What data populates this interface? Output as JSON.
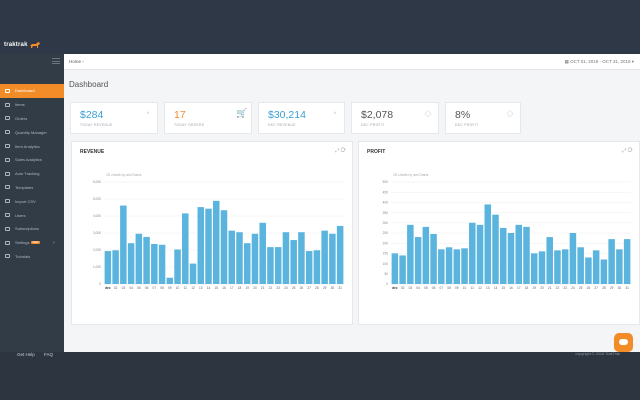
{
  "brand": {
    "name": "traktrak"
  },
  "header": {
    "breadcrumb": "Home",
    "date_range": "OCT 01, 2018 - OCT 31, 2018"
  },
  "page": {
    "title": "Dashboard"
  },
  "sidebar": {
    "items": [
      {
        "label": "Dashboard",
        "icon": "dashboard-icon",
        "active": true
      },
      {
        "label": "Items",
        "icon": "items-icon"
      },
      {
        "label": "Orders",
        "icon": "orders-icon"
      },
      {
        "label": "Quantity Manager",
        "icon": "quantity-icon"
      },
      {
        "label": "Item Analytics",
        "icon": "analytics-icon"
      },
      {
        "label": "Sales Analytics",
        "icon": "sales-icon"
      },
      {
        "label": "Auto Tracking",
        "icon": "tracking-icon"
      },
      {
        "label": "Templates",
        "icon": "templates-icon"
      },
      {
        "label": "Import CSV",
        "icon": "import-icon"
      },
      {
        "label": "Users",
        "icon": "users-icon"
      },
      {
        "label": "Subscriptions",
        "icon": "subscriptions-icon"
      },
      {
        "label": "Settings",
        "icon": "settings-icon",
        "badge": "NEW"
      },
      {
        "label": "Tutorials",
        "icon": "tutorials-icon"
      }
    ]
  },
  "stats": [
    {
      "value": "$284",
      "label": "TODAY REVENUE",
      "color": "#3aa0d8",
      "icon": "gauge-icon"
    },
    {
      "value": "17",
      "label": "TODAY ORDERS",
      "color": "#f28c28",
      "icon": "cart-icon"
    },
    {
      "value": "$30,214",
      "label": "DEC REVENUE",
      "color": "#3aa0d8",
      "icon": "gauge-icon"
    },
    {
      "value": "$2,078",
      "label": "DEC PROFIT",
      "color": "#555555",
      "icon": "diamond-icon"
    },
    {
      "value": "8%",
      "label": "DEC PROFIT",
      "color": "#555555",
      "icon": "diamond-icon"
    }
  ],
  "footer": {
    "help": "Get Help",
    "faq": "FAQ",
    "copyright": "copyright © 2018 TrakTrak"
  },
  "chart_data": [
    {
      "type": "bar",
      "title": "REVENUE",
      "subtitle": "JS charts by amCharts",
      "color": "#5ab4dd",
      "ylim": [
        0,
        6500
      ],
      "yticks": [
        "0",
        "1,000",
        "2,000",
        "3,000",
        "4,000",
        "5,000",
        "6,000"
      ],
      "categories": [
        "dec",
        "02",
        "03",
        "04",
        "05",
        "06",
        "07",
        "08",
        "09",
        "10",
        "11",
        "12",
        "13",
        "14",
        "15",
        "16",
        "17",
        "18",
        "19",
        "20",
        "21",
        "22",
        "23",
        "24",
        "25",
        "26",
        "27",
        "28",
        "29",
        "30",
        "31"
      ],
      "values": [
        2100,
        2150,
        5000,
        2600,
        3200,
        3000,
        2550,
        2500,
        400,
        2200,
        4500,
        1300,
        4900,
        4800,
        5300,
        4700,
        3400,
        3300,
        2600,
        3200,
        3900,
        2350,
        2350,
        3300,
        2800,
        3300,
        2100,
        2150,
        3400,
        3200,
        3700
      ]
    },
    {
      "type": "bar",
      "title": "PROFIT",
      "subtitle": "JS charts by amCharts",
      "color": "#5ab4dd",
      "ylim": [
        0,
        500
      ],
      "yticks": [
        "0",
        "50",
        "100",
        "150",
        "200",
        "250",
        "300",
        "350",
        "400",
        "450",
        "500"
      ],
      "categories": [
        "dec",
        "02",
        "03",
        "04",
        "05",
        "06",
        "07",
        "08",
        "09",
        "10",
        "11",
        "12",
        "13",
        "14",
        "15",
        "16",
        "17",
        "18",
        "19",
        "20",
        "21",
        "22",
        "23",
        "24",
        "25",
        "26",
        "27",
        "28",
        "29",
        "30",
        "31"
      ],
      "values": [
        150,
        140,
        290,
        230,
        280,
        245,
        170,
        180,
        170,
        175,
        300,
        290,
        390,
        340,
        275,
        250,
        290,
        280,
        150,
        160,
        230,
        165,
        170,
        250,
        180,
        130,
        165,
        120,
        220,
        170,
        220
      ]
    }
  ]
}
